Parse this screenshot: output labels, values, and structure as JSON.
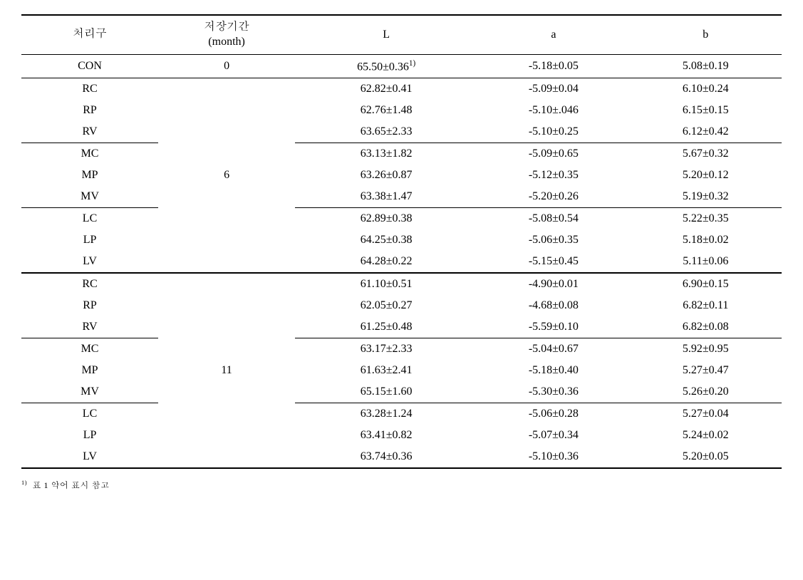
{
  "headers": {
    "treatment": "처리구",
    "period_line1": "저장기간",
    "period_line2": "(month)",
    "L": "L",
    "a": "a",
    "b": "b"
  },
  "periods": {
    "r0": "0",
    "r6": "6",
    "r11": "11"
  },
  "superscript": "1)",
  "rows": {
    "con": {
      "t": "CON",
      "L_pre": "65.50±0.36",
      "L_sup": "1)",
      "a": "-5.18±0.05",
      "b": "5.08±0.19"
    },
    "rc6": {
      "t": "RC",
      "L": "62.82±0.41",
      "a": "-5.09±0.04",
      "b": "6.10±0.24"
    },
    "rp6": {
      "t": "RP",
      "L": "62.76±1.48",
      "a": "-5.10±.046",
      "b": "6.15±0.15"
    },
    "rv6": {
      "t": "RV",
      "L": "63.65±2.33",
      "a": "-5.10±0.25",
      "b": "6.12±0.42"
    },
    "mc6": {
      "t": "MC",
      "L": "63.13±1.82",
      "a": "-5.09±0.65",
      "b": "5.67±0.32"
    },
    "mp6": {
      "t": "MP",
      "L": "63.26±0.87",
      "a": "-5.12±0.35",
      "b": "5.20±0.12"
    },
    "mv6": {
      "t": "MV",
      "L": "63.38±1.47",
      "a": "-5.20±0.26",
      "b": "5.19±0.32"
    },
    "lc6": {
      "t": "LC",
      "L": "62.89±0.38",
      "a": "-5.08±0.54",
      "b": "5.22±0.35"
    },
    "lp6": {
      "t": "LP",
      "L": "64.25±0.38",
      "a": "-5.06±0.35",
      "b": "5.18±0.02"
    },
    "lv6": {
      "t": "LV",
      "L": "64.28±0.22",
      "a": "-5.15±0.45",
      "b": "5.11±0.06"
    },
    "rc11": {
      "t": "RC",
      "L": "61.10±0.51",
      "a": "-4.90±0.01",
      "b": "6.90±0.15"
    },
    "rp11": {
      "t": "RP",
      "L": "62.05±0.27",
      "a": "-4.68±0.08",
      "b": "6.82±0.11"
    },
    "rv11": {
      "t": "RV",
      "L": "61.25±0.48",
      "a": "-5.59±0.10",
      "b": "6.82±0.08"
    },
    "mc11": {
      "t": "MC",
      "L": "63.17±2.33",
      "a": "-5.04±0.67",
      "b": "5.92±0.95"
    },
    "mp11": {
      "t": "MP",
      "L": "61.63±2.41",
      "a": "-5.18±0.40",
      "b": "5.27±0.47"
    },
    "mv11": {
      "t": "MV",
      "L": "65.15±1.60",
      "a": "-5.30±0.36",
      "b": "5.26±0.20"
    },
    "lc11": {
      "t": "LC",
      "L": "63.28±1.24",
      "a": "-5.06±0.28",
      "b": "5.27±0.04"
    },
    "lp11": {
      "t": "LP",
      "L": "63.41±0.82",
      "a": "-5.07±0.34",
      "b": "5.24±0.02"
    },
    "lv11": {
      "t": "LV",
      "L": "63.74±0.36",
      "a": "-5.10±0.36",
      "b": "5.20±0.05"
    }
  },
  "footnote": {
    "sup": "1)",
    "text": "표 1 약어 표시 참고"
  }
}
